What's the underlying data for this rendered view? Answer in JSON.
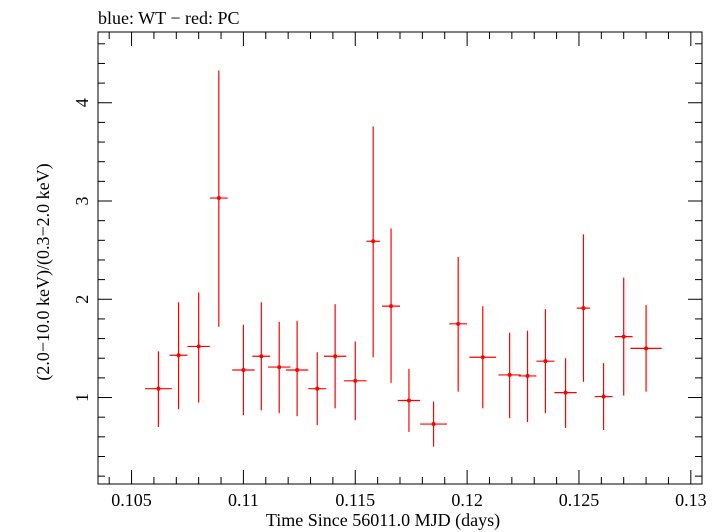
{
  "chart_data": {
    "type": "scatter",
    "title": "blue: WT − red: PC",
    "xlabel": "Time Since 56011.0 MJD (days)",
    "ylabel": "(2.0−10.0 keV)/(0.3−2.0 keV)",
    "xlim": [
      0.1035,
      0.1305
    ],
    "ylim": [
      0.12,
      4.72
    ],
    "x_ticks": [
      0.105,
      0.11,
      0.115,
      0.12,
      0.125,
      0.13
    ],
    "x_tick_labels": [
      "0.105",
      "0.11",
      "0.115",
      "0.12",
      "0.125",
      "0.13"
    ],
    "y_ticks": [
      1,
      2,
      3,
      4
    ],
    "y_tick_labels": [
      "1",
      "2",
      "3",
      "4"
    ],
    "grid": false,
    "series": [
      {
        "color": "#ff0000",
        "points": [
          {
            "x": 0.1062,
            "y": 1.09,
            "xerr": 0.0006,
            "ylo": 0.7,
            "yhi": 1.47
          },
          {
            "x": 0.1071,
            "y": 1.43,
            "xerr": 0.0004,
            "ylo": 0.88,
            "yhi": 1.97
          },
          {
            "x": 0.108,
            "y": 1.52,
            "xerr": 0.0005,
            "ylo": 0.95,
            "yhi": 2.07
          },
          {
            "x": 0.1089,
            "y": 3.03,
            "xerr": 0.0004,
            "ylo": 1.72,
            "yhi": 4.33
          },
          {
            "x": 0.11,
            "y": 1.28,
            "xerr": 0.0005,
            "ylo": 0.82,
            "yhi": 1.74
          },
          {
            "x": 0.1108,
            "y": 1.42,
            "xerr": 0.0004,
            "ylo": 0.87,
            "yhi": 1.97
          },
          {
            "x": 0.1116,
            "y": 1.31,
            "xerr": 0.0005,
            "ylo": 0.84,
            "yhi": 1.77
          },
          {
            "x": 0.1124,
            "y": 1.28,
            "xerr": 0.0005,
            "ylo": 0.81,
            "yhi": 1.78
          },
          {
            "x": 0.1133,
            "y": 1.09,
            "xerr": 0.0004,
            "ylo": 0.72,
            "yhi": 1.46
          },
          {
            "x": 0.1141,
            "y": 1.42,
            "xerr": 0.0005,
            "ylo": 0.89,
            "yhi": 1.95
          },
          {
            "x": 0.115,
            "y": 1.17,
            "xerr": 0.0005,
            "ylo": 0.77,
            "yhi": 1.57
          },
          {
            "x": 0.1158,
            "y": 2.59,
            "xerr": 0.0003,
            "ylo": 1.41,
            "yhi": 3.76
          },
          {
            "x": 0.1166,
            "y": 1.93,
            "xerr": 0.0004,
            "ylo": 1.15,
            "yhi": 2.72
          },
          {
            "x": 0.1174,
            "y": 0.97,
            "xerr": 0.0005,
            "ylo": 0.65,
            "yhi": 1.29
          },
          {
            "x": 0.1185,
            "y": 0.73,
            "xerr": 0.0006,
            "ylo": 0.5,
            "yhi": 0.96
          },
          {
            "x": 0.1196,
            "y": 1.75,
            "xerr": 0.0004,
            "ylo": 1.06,
            "yhi": 2.43
          },
          {
            "x": 0.1207,
            "y": 1.41,
            "xerr": 0.0006,
            "ylo": 0.89,
            "yhi": 1.93
          },
          {
            "x": 0.1219,
            "y": 1.23,
            "xerr": 0.0005,
            "ylo": 0.79,
            "yhi": 1.66
          },
          {
            "x": 0.1227,
            "y": 1.22,
            "xerr": 0.0004,
            "ylo": 0.75,
            "yhi": 1.68
          },
          {
            "x": 0.1235,
            "y": 1.37,
            "xerr": 0.0004,
            "ylo": 0.84,
            "yhi": 1.9
          },
          {
            "x": 0.1244,
            "y": 1.05,
            "xerr": 0.0005,
            "ylo": 0.69,
            "yhi": 1.4
          },
          {
            "x": 0.1252,
            "y": 1.91,
            "xerr": 0.0003,
            "ylo": 1.16,
            "yhi": 2.66
          },
          {
            "x": 0.1261,
            "y": 1.01,
            "xerr": 0.0004,
            "ylo": 0.67,
            "yhi": 1.35
          },
          {
            "x": 0.127,
            "y": 1.62,
            "xerr": 0.0004,
            "ylo": 1.02,
            "yhi": 2.22
          },
          {
            "x": 0.128,
            "y": 1.5,
            "xerr": 0.0007,
            "ylo": 1.06,
            "yhi": 1.94
          }
        ]
      }
    ]
  }
}
